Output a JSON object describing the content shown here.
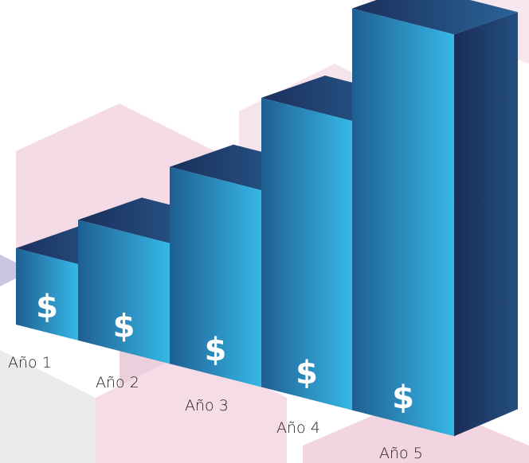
{
  "chart_data": {
    "type": "bar",
    "categories": [
      "Año 1",
      "Año 2",
      "Año 3",
      "Año 4",
      "Año 5"
    ],
    "values": [
      19,
      30,
      49,
      72,
      100
    ],
    "bar_label": "$",
    "ylim": [
      0,
      100
    ],
    "color": "#35b5e5"
  }
}
